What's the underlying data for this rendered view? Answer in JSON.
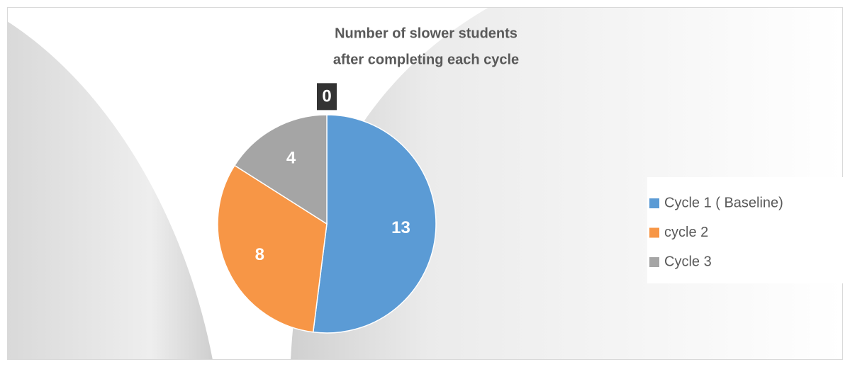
{
  "chart_data": {
    "type": "pie",
    "title": [
      "Number of slower students",
      "after completing each cycle"
    ],
    "categories": [
      "Cycle 1 ( Baseline)",
      "cycle 2",
      "Cycle 3",
      null
    ],
    "values": [
      13,
      8,
      4,
      0
    ],
    "colors": [
      "#5b9bd5",
      "#f79646",
      "#a5a5a5",
      "#333333"
    ],
    "legend": "right"
  }
}
